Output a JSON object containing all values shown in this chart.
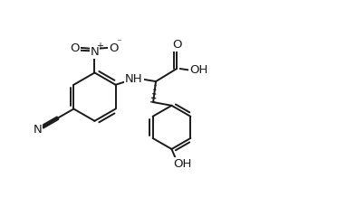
{
  "bg_color": "#ffffff",
  "line_color": "#1a1a1a",
  "line_width": 1.4,
  "figsize": [
    3.72,
    2.18
  ],
  "dpi": 100,
  "xlim": [
    0,
    10.0
  ],
  "ylim": [
    0,
    5.5
  ]
}
